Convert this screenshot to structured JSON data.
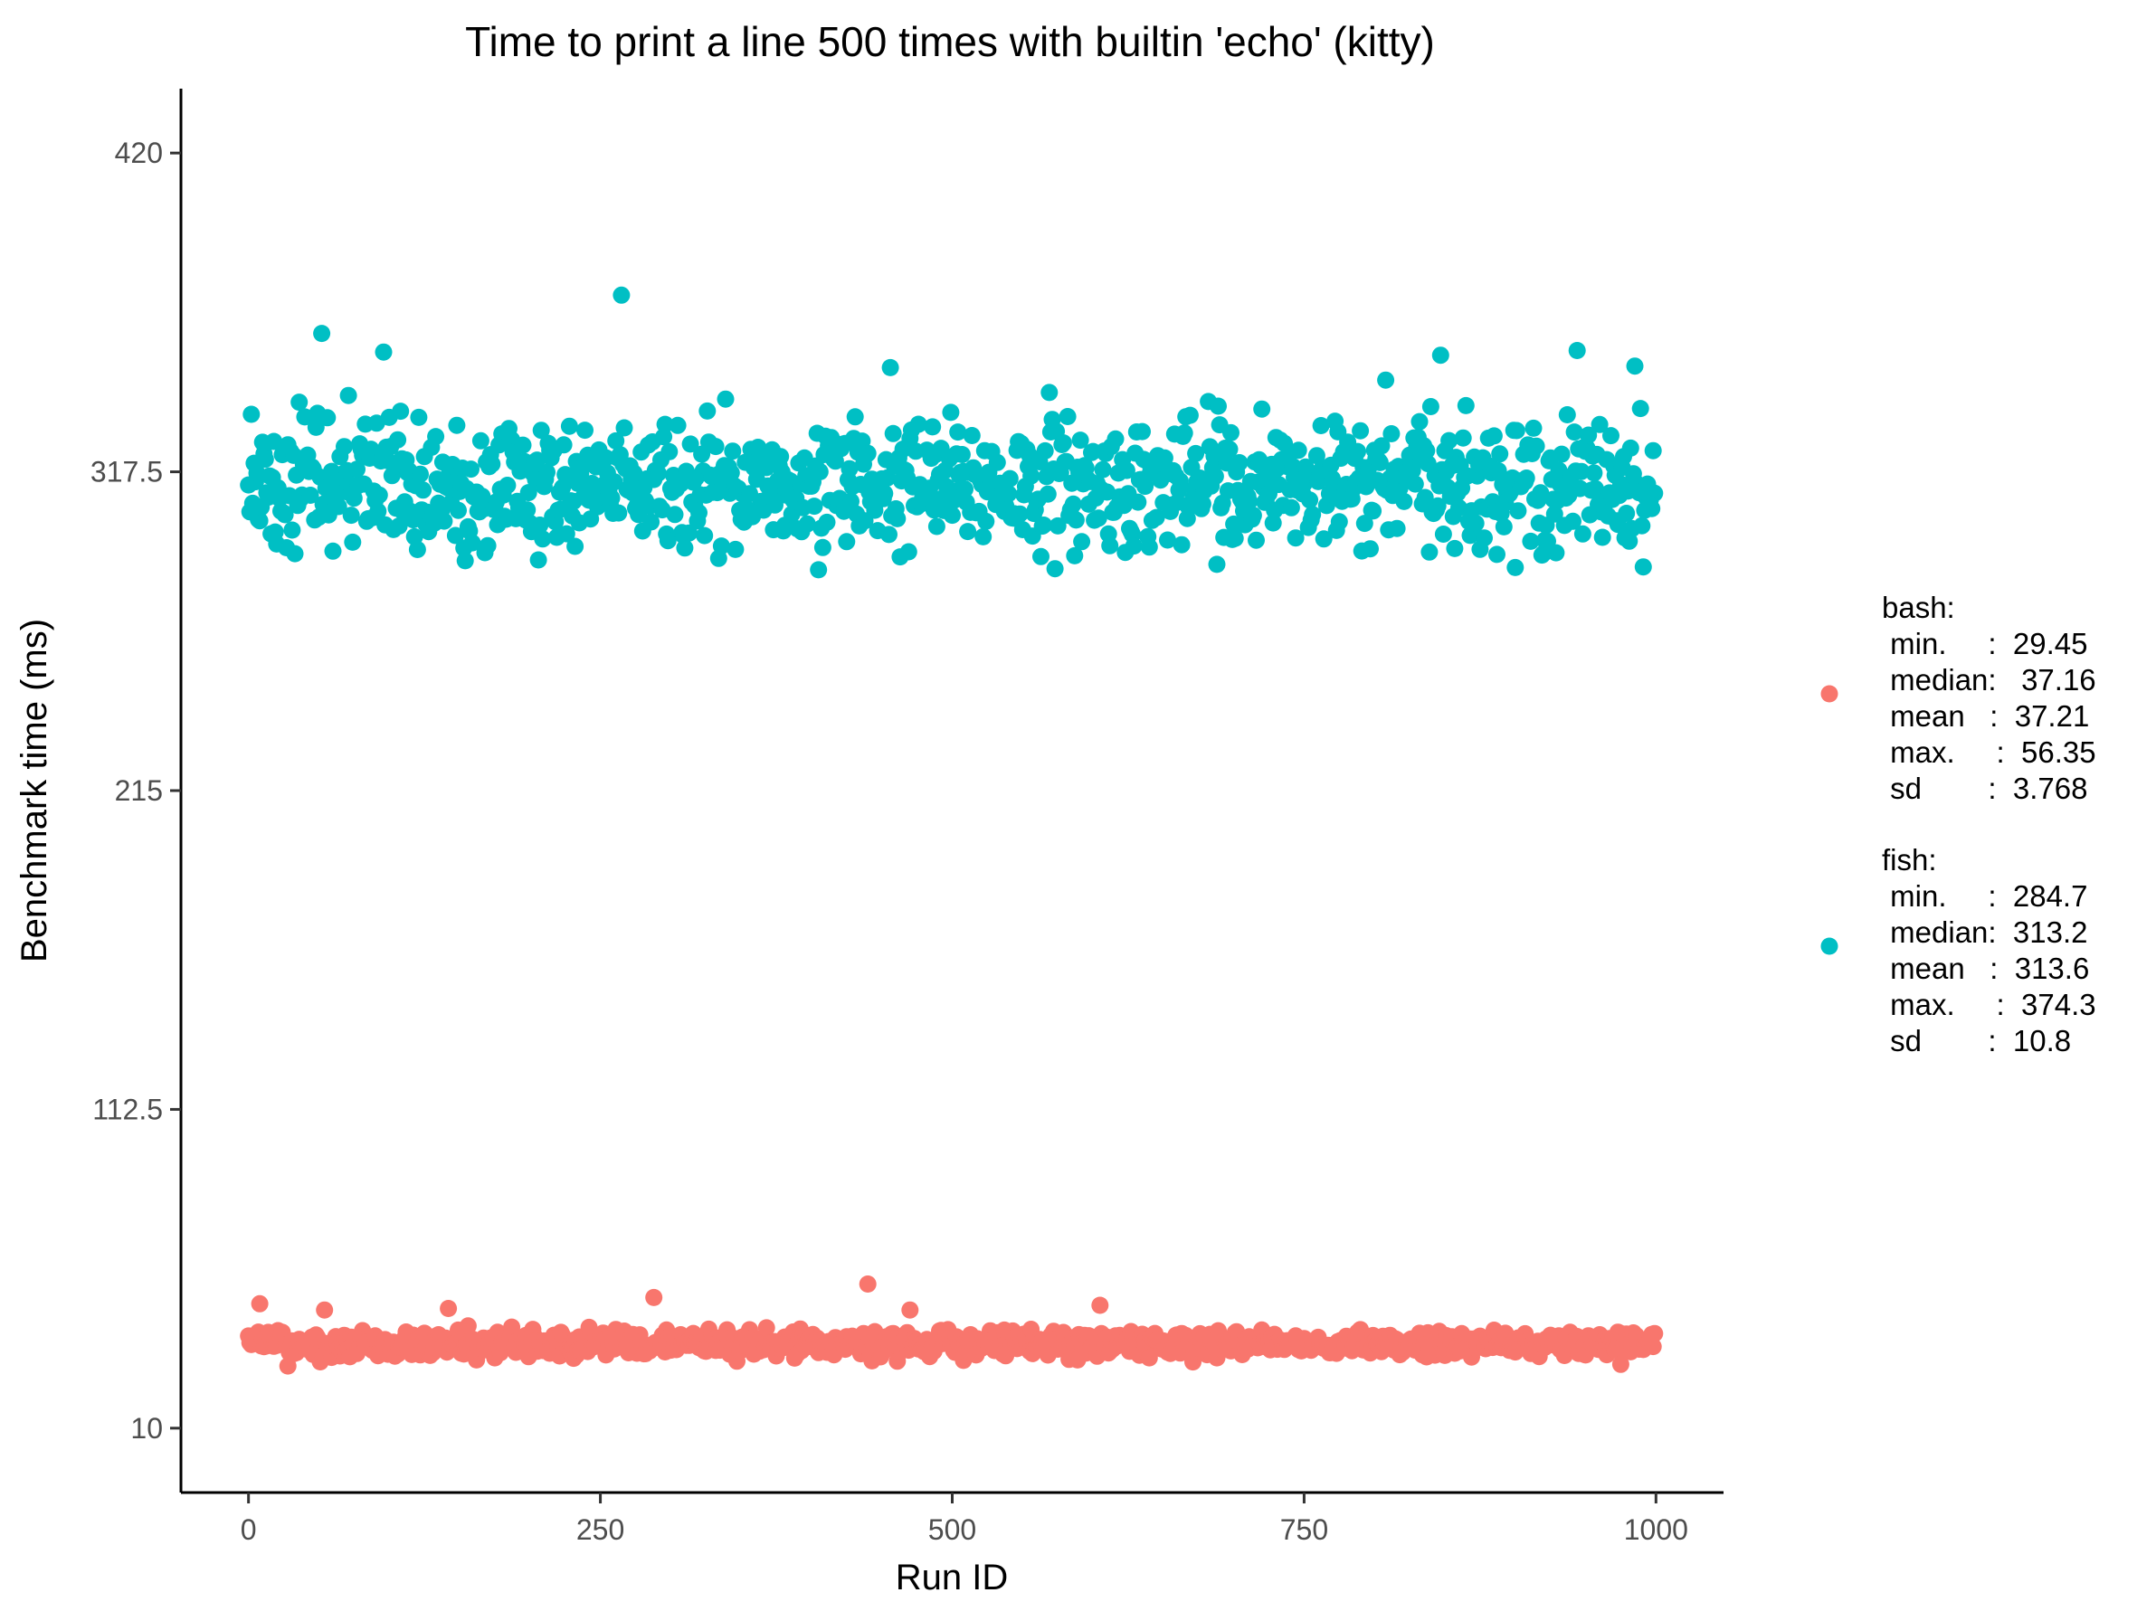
{
  "chart_data": {
    "type": "scatter",
    "title": "Time to print a line 500 times with builtin 'echo' (kitty)",
    "xlabel": "Run ID",
    "ylabel": "Benchmark time (ms)",
    "xlim": [
      -48,
      1048
    ],
    "ylim": [
      -10.7,
      440.7
    ],
    "x_ticks": [
      0,
      250,
      500,
      750,
      1000
    ],
    "x_tick_labels": [
      "0",
      "250",
      "500",
      "750",
      "1000"
    ],
    "y_ticks": [
      10,
      112.5,
      215,
      317.5,
      420
    ],
    "y_tick_labels": [
      "10",
      "112.5",
      "215",
      "317.5",
      "420"
    ],
    "grid": false,
    "legend_position": "right",
    "n_points_per_series": 1000,
    "series": [
      {
        "name": "bash",
        "color": "#F8766D",
        "legend_lines": [
          "bash:",
          " min.     :  29.45",
          " median:   37.16",
          " mean   :  37.21",
          " max.     :  56.35",
          " sd        :  3.768"
        ],
        "stats": {
          "min": 29.45,
          "median": 37.16,
          "mean": 37.21,
          "max": 56.35,
          "sd": 3.768
        },
        "highlights": [
          {
            "x": 440,
            "y": 56.35
          },
          {
            "x": 288,
            "y": 52
          },
          {
            "x": 8,
            "y": 50
          },
          {
            "x": 605,
            "y": 49.5
          },
          {
            "x": 54,
            "y": 48
          },
          {
            "x": 142,
            "y": 48.5
          },
          {
            "x": 470,
            "y": 48
          },
          {
            "x": 28,
            "y": 30
          },
          {
            "x": 975,
            "y": 30.5
          }
        ]
      },
      {
        "name": "fish",
        "color": "#00BFC4",
        "legend_lines": [
          "fish:",
          " min.     :  284.7",
          " median:  313.2",
          " mean   :  313.6",
          " max.     :  374.3",
          " sd        :  10.8"
        ],
        "stats": {
          "min": 284.7,
          "median": 313.2,
          "mean": 313.6,
          "max": 374.3,
          "sd": 10.8
        },
        "highlights": [
          {
            "x": 265,
            "y": 374.3
          },
          {
            "x": 2,
            "y": 369.5
          },
          {
            "x": 52,
            "y": 362
          },
          {
            "x": 96,
            "y": 356
          },
          {
            "x": 944,
            "y": 356.5
          },
          {
            "x": 847,
            "y": 355
          },
          {
            "x": 456,
            "y": 351
          },
          {
            "x": 985,
            "y": 351.5
          },
          {
            "x": 808,
            "y": 347
          },
          {
            "x": 569,
            "y": 343
          },
          {
            "x": 2,
            "y": 336
          },
          {
            "x": 405,
            "y": 286
          },
          {
            "x": 60,
            "y": 292
          },
          {
            "x": 310,
            "y": 293
          },
          {
            "x": 917,
            "y": 301
          }
        ]
      }
    ]
  }
}
